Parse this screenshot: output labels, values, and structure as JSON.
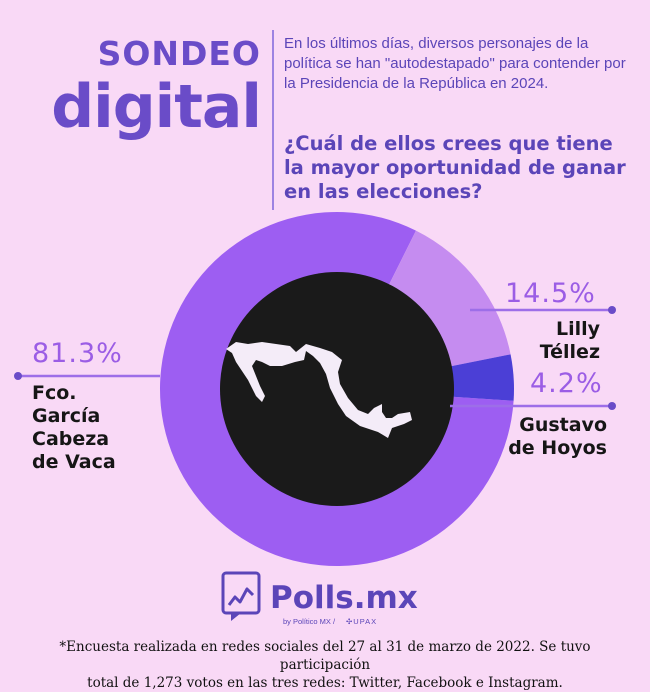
{
  "header": {
    "title_line1": "SONDEO",
    "title_line2": "digital",
    "intro": "En los últimos días, diversos personajes de la política se han \"autodestapado\" para contender por la Presidencia de la República en 2024.",
    "question": "¿Cuál de ellos crees que tiene la mayor oportunidad de ganar en las elecciones?"
  },
  "chart_data": {
    "type": "pie",
    "style": "donut",
    "categories": [
      "Fco. García Cabeza de Vaca",
      "Lilly Téllez",
      "Gustavo de Hoyos"
    ],
    "values": [
      81.3,
      14.5,
      4.2
    ],
    "value_labels": [
      "81.3%",
      "14.5%",
      "4.2%"
    ],
    "name_lines": [
      [
        "Fco.",
        "García",
        "Cabeza",
        "de Vaca"
      ],
      [
        "Lilly",
        "Téllez"
      ],
      [
        "Gustavo",
        "de Hoyos"
      ]
    ],
    "colors": [
      "#9d5ef2",
      "#c58cf0",
      "#4b3fd6"
    ],
    "center_icon": "mexico-map",
    "unit": "%"
  },
  "brand": {
    "name": "Polls.mx",
    "byline": "by Político MX /",
    "partner": "UPAX"
  },
  "footnote": {
    "line1": "*Encuesta realizada en redes sociales del 27 al 31 de marzo de 2022. Se tuvo participación",
    "line2": "total de 1,273 votos en las tres redes: Twitter, Facebook e Instagram."
  }
}
